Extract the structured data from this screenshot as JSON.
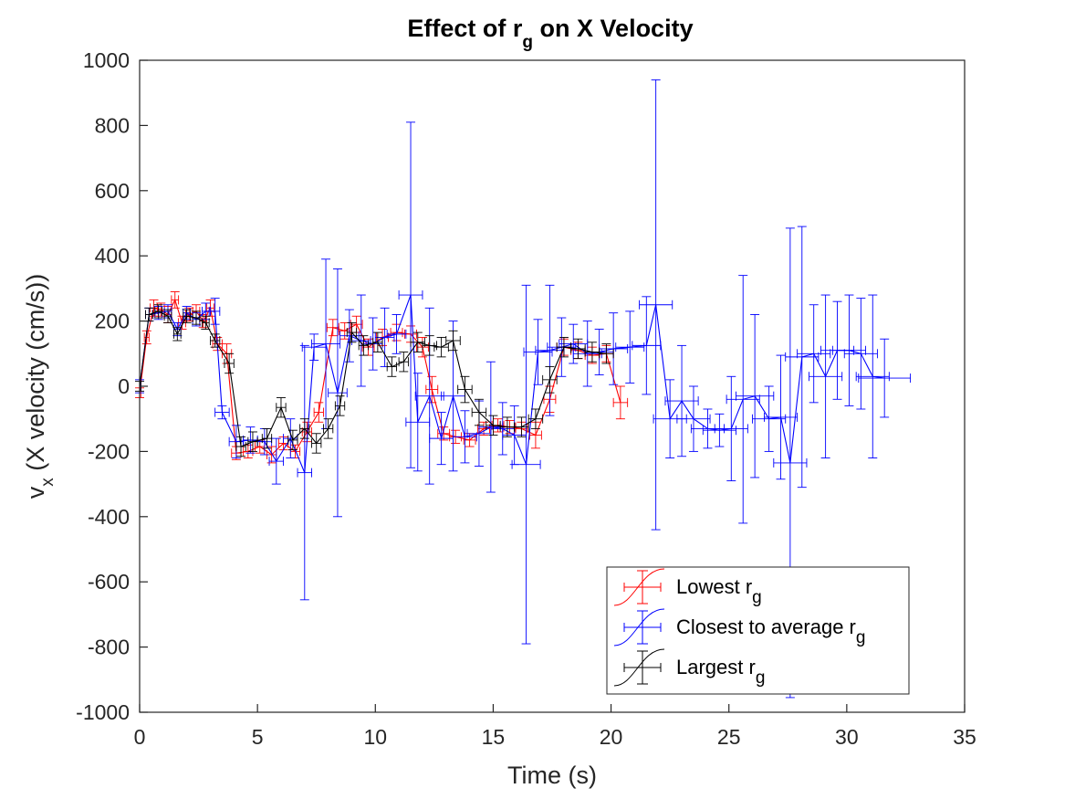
{
  "chart_data": {
    "type": "line",
    "title": {
      "main_before": "Effect of r",
      "main_sub": "g",
      "main_after": " on X Velocity"
    },
    "xlabel": "Time (s)",
    "ylabel": {
      "main": "v",
      "sub": "x",
      "rest": " (X velocity (cm/s))"
    },
    "xlim": [
      0,
      35
    ],
    "ylim": [
      -1000,
      1000
    ],
    "xticks": [
      0,
      5,
      10,
      15,
      20,
      25,
      30,
      35
    ],
    "yticks": [
      -1000,
      -800,
      -600,
      -400,
      -200,
      0,
      200,
      400,
      600,
      800,
      1000
    ],
    "xtick_labels": [
      "0",
      "5",
      "10",
      "15",
      "20",
      "25",
      "30",
      "35"
    ],
    "ytick_labels": [
      "-1000",
      "-800",
      "-600",
      "-400",
      "-200",
      "0",
      "200",
      "400",
      "600",
      "800",
      "1000"
    ],
    "grid": false,
    "legend_position": "bottom-right",
    "series": [
      {
        "name": "Lowest r",
        "name_sub": "g",
        "color": "#ff0000",
        "points": [
          [
            0,
            -20,
            15,
            0.05
          ],
          [
            0.3,
            150,
            20,
            0.1
          ],
          [
            0.6,
            240,
            25,
            0.15
          ],
          [
            0.9,
            235,
            20,
            0.15
          ],
          [
            1.2,
            220,
            25,
            0.15
          ],
          [
            1.5,
            265,
            25,
            0.15
          ],
          [
            1.8,
            195,
            20,
            0.15
          ],
          [
            2.1,
            220,
            20,
            0.15
          ],
          [
            2.4,
            230,
            20,
            0.15
          ],
          [
            2.7,
            200,
            20,
            0.15
          ],
          [
            3.0,
            240,
            25,
            0.15
          ],
          [
            3.3,
            130,
            20,
            0.2
          ],
          [
            3.7,
            100,
            30,
            0.2
          ],
          [
            4.1,
            -205,
            20,
            0.2
          ],
          [
            4.6,
            -200,
            20,
            0.2
          ],
          [
            5.1,
            -185,
            20,
            0.2
          ],
          [
            5.6,
            -210,
            25,
            0.2
          ],
          [
            6.1,
            -175,
            20,
            0.2
          ],
          [
            6.6,
            -200,
            20,
            0.2
          ],
          [
            7.1,
            -140,
            30,
            0.2
          ],
          [
            7.6,
            -80,
            30,
            0.2
          ],
          [
            8.2,
            180,
            25,
            0.25
          ],
          [
            8.7,
            170,
            25,
            0.25
          ],
          [
            9.2,
            190,
            25,
            0.25
          ],
          [
            9.7,
            120,
            25,
            0.25
          ],
          [
            10.3,
            150,
            25,
            0.25
          ],
          [
            10.9,
            165,
            25,
            0.25
          ],
          [
            11.5,
            160,
            25,
            0.25
          ],
          [
            12.0,
            120,
            30,
            0.25
          ],
          [
            12.4,
            -10,
            40,
            0.25
          ],
          [
            12.9,
            -145,
            20,
            0.25
          ],
          [
            13.4,
            -155,
            20,
            0.25
          ],
          [
            14.0,
            -165,
            20,
            0.25
          ],
          [
            14.6,
            -130,
            20,
            0.25
          ],
          [
            15.2,
            -120,
            20,
            0.25
          ],
          [
            15.7,
            -125,
            20,
            0.25
          ],
          [
            16.2,
            -130,
            20,
            0.25
          ],
          [
            16.8,
            -150,
            40,
            0.25
          ],
          [
            17.4,
            -40,
            40,
            0.25
          ],
          [
            18.0,
            120,
            25,
            0.3
          ],
          [
            18.6,
            110,
            25,
            0.3
          ],
          [
            19.2,
            95,
            25,
            0.3
          ],
          [
            19.8,
            100,
            25,
            0.3
          ],
          [
            20.4,
            -50,
            50,
            0.3
          ]
        ]
      },
      {
        "name": "Closest to average r",
        "name_sub": "g",
        "color": "#0000ff",
        "points": [
          [
            0,
            0,
            20,
            0.05
          ],
          [
            0.4,
            220,
            20,
            0.15
          ],
          [
            0.8,
            225,
            20,
            0.15
          ],
          [
            1.2,
            230,
            20,
            0.15
          ],
          [
            1.6,
            175,
            20,
            0.15
          ],
          [
            2.0,
            225,
            20,
            0.15
          ],
          [
            2.4,
            205,
            20,
            0.15
          ],
          [
            2.8,
            230,
            25,
            0.15
          ],
          [
            3.2,
            230,
            40,
            0.2
          ],
          [
            3.5,
            -80,
            20,
            0.3
          ],
          [
            4.1,
            -170,
            50,
            0.3
          ],
          [
            4.7,
            -165,
            40,
            0.3
          ],
          [
            5.3,
            -170,
            40,
            0.3
          ],
          [
            5.8,
            -230,
            70,
            0.3
          ],
          [
            6.4,
            -160,
            60,
            0.3
          ],
          [
            7.0,
            -265,
            390,
            0.3
          ],
          [
            7.4,
            120,
            40,
            0.5
          ],
          [
            7.9,
            130,
            260,
            0.6
          ],
          [
            8.4,
            -20,
            380,
            0.4
          ],
          [
            8.9,
            155,
            80,
            0.4
          ],
          [
            9.4,
            140,
            140,
            0.4
          ],
          [
            9.9,
            130,
            80,
            0.4
          ],
          [
            10.4,
            150,
            90,
            0.4
          ],
          [
            10.9,
            160,
            60,
            0.4
          ],
          [
            11.5,
            280,
            530,
            0.5
          ],
          [
            11.8,
            -110,
            150,
            0.5
          ],
          [
            12.3,
            -30,
            270,
            0.6
          ],
          [
            12.8,
            -160,
            80,
            0.5
          ],
          [
            13.3,
            -30,
            230,
            0.5
          ],
          [
            13.8,
            -155,
            80,
            0.5
          ],
          [
            14.4,
            -145,
            100,
            0.5
          ],
          [
            14.9,
            -125,
            200,
            0.5
          ],
          [
            15.4,
            -130,
            80,
            0.5
          ],
          [
            15.9,
            -150,
            90,
            0.5
          ],
          [
            16.4,
            -240,
            550,
            0.6
          ],
          [
            16.9,
            105,
            100,
            0.6
          ],
          [
            17.4,
            110,
            200,
            0.6
          ],
          [
            17.9,
            120,
            90,
            0.6
          ],
          [
            18.4,
            130,
            60,
            0.6
          ],
          [
            19.0,
            100,
            100,
            0.6
          ],
          [
            19.5,
            105,
            70,
            0.6
          ],
          [
            20.1,
            115,
            110,
            0.6
          ],
          [
            20.8,
            120,
            110,
            0.6
          ],
          [
            21.5,
            125,
            150,
            0.6
          ],
          [
            21.9,
            250,
            690,
            0.7
          ],
          [
            22.5,
            -100,
            120,
            0.7
          ],
          [
            23.0,
            -45,
            170,
            0.7
          ],
          [
            23.5,
            -100,
            100,
            0.7
          ],
          [
            24.1,
            -130,
            60,
            0.7
          ],
          [
            24.6,
            -135,
            50,
            0.7
          ],
          [
            25.1,
            -130,
            160,
            0.7
          ],
          [
            25.6,
            -40,
            380,
            0.7
          ],
          [
            26.1,
            -30,
            250,
            0.8
          ],
          [
            26.7,
            -100,
            100,
            0.7
          ],
          [
            27.2,
            -95,
            190,
            0.7
          ],
          [
            27.6,
            -235,
            720,
            0.7
          ],
          [
            28.1,
            90,
            400,
            0.7
          ],
          [
            28.6,
            100,
            150,
            0.7
          ],
          [
            29.1,
            30,
            250,
            0.7
          ],
          [
            29.6,
            110,
            150,
            0.7
          ],
          [
            30.1,
            110,
            170,
            0.7
          ],
          [
            30.6,
            100,
            170,
            0.7
          ],
          [
            31.1,
            30,
            250,
            0.7
          ],
          [
            31.6,
            25,
            120,
            1.1
          ]
        ]
      },
      {
        "name": "Largest r",
        "name_sub": "g",
        "color": "#000000",
        "points": [
          [
            0,
            0,
            15,
            0.05
          ],
          [
            0.4,
            220,
            20,
            0.15
          ],
          [
            0.8,
            230,
            20,
            0.15
          ],
          [
            1.2,
            215,
            20,
            0.15
          ],
          [
            1.6,
            160,
            20,
            0.15
          ],
          [
            2.0,
            215,
            20,
            0.15
          ],
          [
            2.4,
            210,
            20,
            0.15
          ],
          [
            2.8,
            195,
            20,
            0.15
          ],
          [
            3.2,
            140,
            20,
            0.2
          ],
          [
            3.8,
            70,
            30,
            0.2
          ],
          [
            4.3,
            -185,
            30,
            0.2
          ],
          [
            4.8,
            -170,
            30,
            0.2
          ],
          [
            5.4,
            -160,
            30,
            0.2
          ],
          [
            6.0,
            -65,
            30,
            0.2
          ],
          [
            6.5,
            -165,
            30,
            0.2
          ],
          [
            7.0,
            -130,
            30,
            0.2
          ],
          [
            7.5,
            -175,
            30,
            0.2
          ],
          [
            8.0,
            -130,
            30,
            0.2
          ],
          [
            8.5,
            -60,
            30,
            0.2
          ],
          [
            9.0,
            165,
            30,
            0.2
          ],
          [
            9.5,
            125,
            30,
            0.2
          ],
          [
            10.1,
            135,
            30,
            0.2
          ],
          [
            10.7,
            60,
            30,
            0.2
          ],
          [
            11.2,
            75,
            30,
            0.2
          ],
          [
            11.8,
            135,
            30,
            0.3
          ],
          [
            12.3,
            125,
            30,
            0.3
          ],
          [
            12.8,
            120,
            30,
            0.3
          ],
          [
            13.3,
            140,
            30,
            0.3
          ],
          [
            13.8,
            -10,
            40,
            0.3
          ],
          [
            14.4,
            -80,
            40,
            0.3
          ],
          [
            15.0,
            -120,
            30,
            0.3
          ],
          [
            15.6,
            -125,
            30,
            0.3
          ],
          [
            16.2,
            -125,
            30,
            0.3
          ],
          [
            16.8,
            -100,
            30,
            0.3
          ],
          [
            17.4,
            20,
            40,
            0.3
          ],
          [
            18.0,
            120,
            30,
            0.3
          ],
          [
            18.6,
            115,
            30,
            0.3
          ],
          [
            19.2,
            105,
            30,
            0.3
          ],
          [
            19.8,
            100,
            30,
            0.3
          ]
        ]
      }
    ]
  }
}
